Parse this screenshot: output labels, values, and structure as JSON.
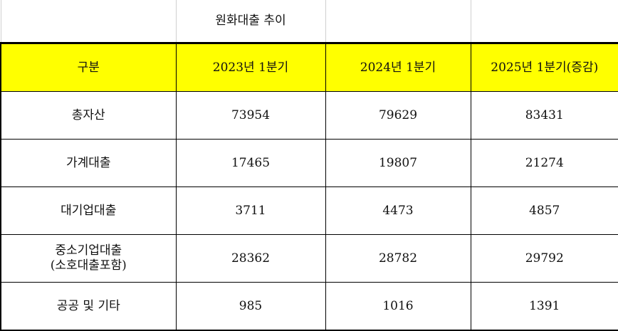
{
  "title": "원화대출 추이",
  "headers": [
    "구분",
    "2023년 1분기",
    "2024년 1분기",
    "2025년 1분기(증감)"
  ],
  "rows": [
    {
      "label": "총자산",
      "label2": "",
      "values": [
        "73954",
        "79629",
        "83431"
      ]
    },
    {
      "label": "가계대출",
      "label2": "",
      "values": [
        "17465",
        "19807",
        "21274"
      ]
    },
    {
      "label": "대기업대출",
      "label2": "",
      "values": [
        "3711",
        "4473",
        "4857"
      ]
    },
    {
      "label": "중소기업대출",
      "label2": "(소호대출포함)",
      "values": [
        "28362",
        "28782",
        "29792"
      ]
    },
    {
      "label": "공공 및 기타",
      "label2": "",
      "values": [
        "985",
        "1016",
        "1391"
      ]
    }
  ],
  "colors": {
    "header_bg": "#ffff00"
  }
}
